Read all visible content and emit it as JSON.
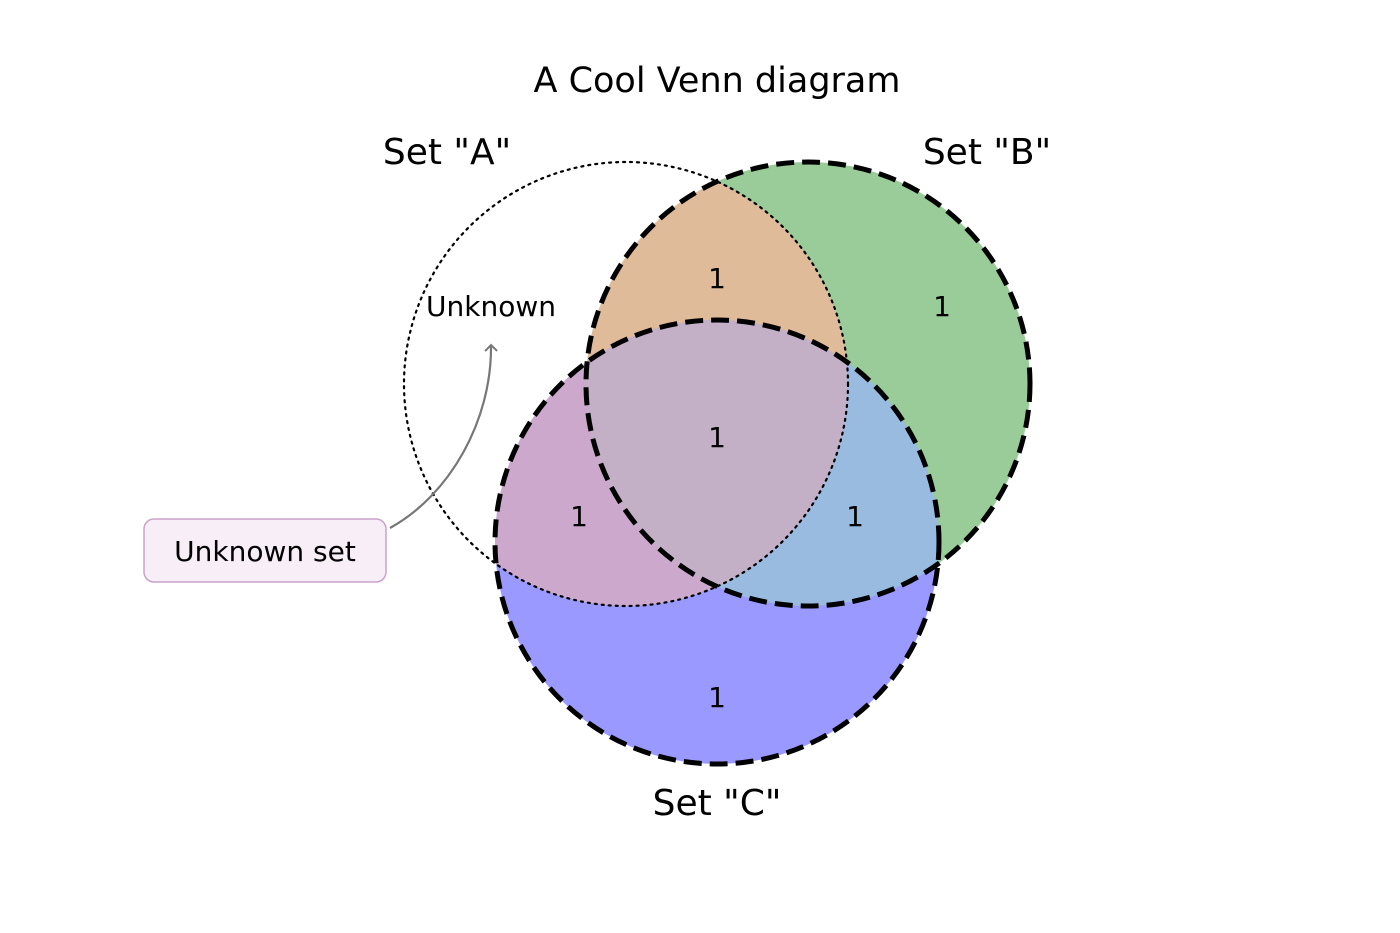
{
  "title": "A Cool Venn diagram",
  "sets": {
    "A": {
      "label": "Set \"A\"",
      "style": "dotted",
      "fill": "none"
    },
    "B": {
      "label": "Set \"B\"",
      "style": "dashed",
      "fill": "#99cc99"
    },
    "C": {
      "label": "Set \"C\"",
      "style": "dashed",
      "fill": "#9999ff"
    }
  },
  "regions": {
    "A_only": {
      "value": "Unknown"
    },
    "B_only": {
      "value": "1",
      "color": "#99cc99"
    },
    "C_only": {
      "value": "1",
      "color": "#9999ff"
    },
    "AB": {
      "value": "1",
      "color": "#e0bb99"
    },
    "AC": {
      "value": "1",
      "color": "#cca9cc"
    },
    "BC": {
      "value": "1",
      "color": "#99bbe0"
    },
    "ABC": {
      "value": "1",
      "color": "#c3b0c7"
    }
  },
  "callout": {
    "text": "Unknown set",
    "box_fill": "#f7eef7",
    "box_stroke": "#c9a3c9",
    "arrow_color": "#777777"
  }
}
